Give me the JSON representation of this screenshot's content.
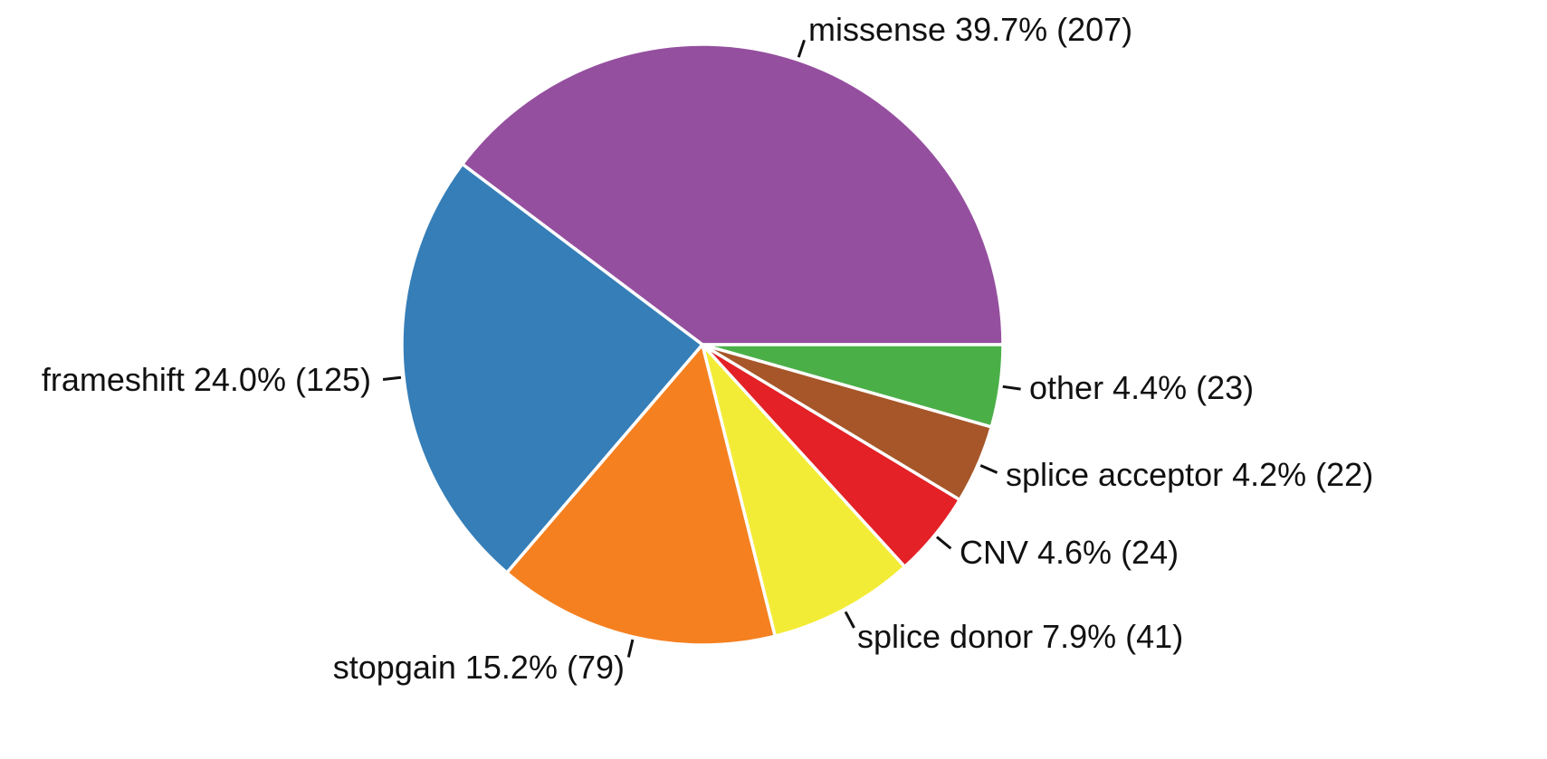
{
  "chart_data": {
    "type": "pie",
    "title": "",
    "slices": [
      {
        "name": "missense",
        "percent": 39.7,
        "count": 207,
        "label": "missense 39.7% (207)",
        "color": "#954F9F"
      },
      {
        "name": "frameshift",
        "percent": 24.0,
        "count": 125,
        "label": "frameshift 24.0% (125)",
        "color": "#357EB8"
      },
      {
        "name": "stopgain",
        "percent": 15.2,
        "count": 79,
        "label": "stopgain 15.2% (79)",
        "color": "#F58020"
      },
      {
        "name": "splice donor",
        "percent": 7.9,
        "count": 41,
        "label": "splice donor 7.9% (41)",
        "color": "#F3EC36"
      },
      {
        "name": "CNV",
        "percent": 4.6,
        "count": 24,
        "label": "CNV 4.6% (24)",
        "color": "#E32126"
      },
      {
        "name": "splice acceptor",
        "percent": 4.2,
        "count": 22,
        "label": "splice acceptor 4.2% (22)",
        "color": "#A65628"
      },
      {
        "name": "other",
        "percent": 4.4,
        "count": 23,
        "label": "other 4.4% (23)",
        "color": "#4BAF48"
      }
    ],
    "start_angle_deg": 0,
    "direction": "counterclockwise",
    "legend": "none"
  }
}
